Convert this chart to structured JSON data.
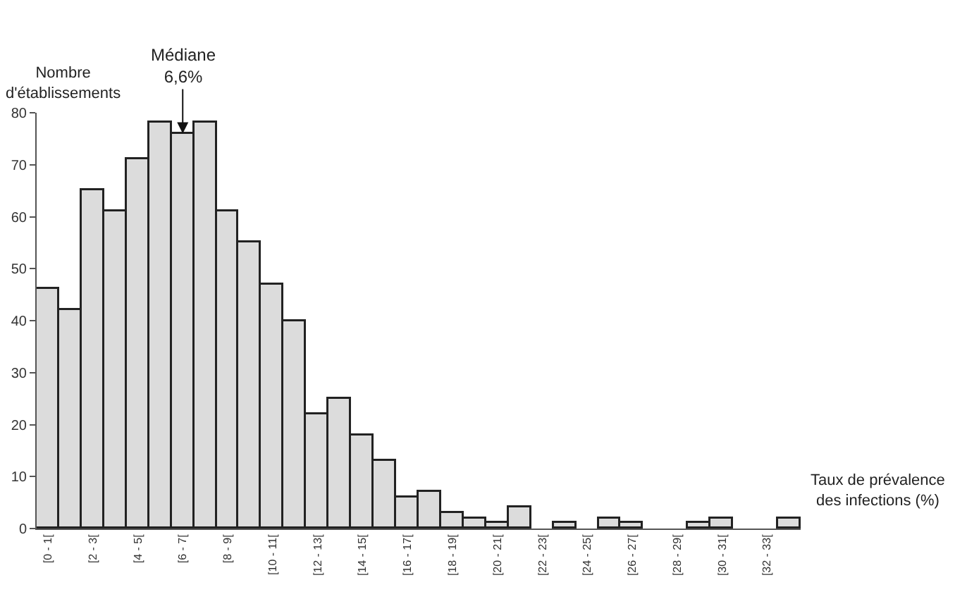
{
  "chart_data": {
    "type": "bar",
    "ylabel": "Nombre\nd'établissements",
    "xlabel": "Taux de prévalence\ndes infections (%)",
    "categories": [
      "[0 - 1[",
      null,
      "[2 - 3[",
      null,
      "[4 - 5[",
      null,
      "[6 - 7[",
      null,
      "[8 - 9[",
      null,
      "[10 - 11[",
      null,
      "[12 - 13[",
      null,
      "[14 - 15[",
      null,
      "[16 - 17[",
      null,
      "[18 - 19[",
      null,
      "[20 - 21[",
      null,
      "[22 - 23[",
      null,
      "[24 - 25[",
      null,
      "[26 - 27[",
      null,
      "[28 - 29[",
      null,
      "[30 - 31[",
      null,
      "[32 - 33[",
      null
    ],
    "values": [
      46,
      42,
      65,
      61,
      71,
      78,
      76,
      78,
      61,
      55,
      47,
      40,
      22,
      25,
      18,
      13,
      6,
      7,
      3,
      2,
      1,
      4,
      null,
      1,
      null,
      2,
      1,
      null,
      null,
      1,
      2,
      null,
      null,
      2
    ],
    "color": "#dcdcdc",
    "ylim": [
      0,
      80
    ],
    "yticks": [
      0,
      10,
      20,
      30,
      40,
      50,
      60,
      70,
      80
    ],
    "annotations": [
      {
        "text": "Médiane\n6,6%",
        "x": "[6 - 7[",
        "y": 76
      }
    ],
    "grid": false
  }
}
